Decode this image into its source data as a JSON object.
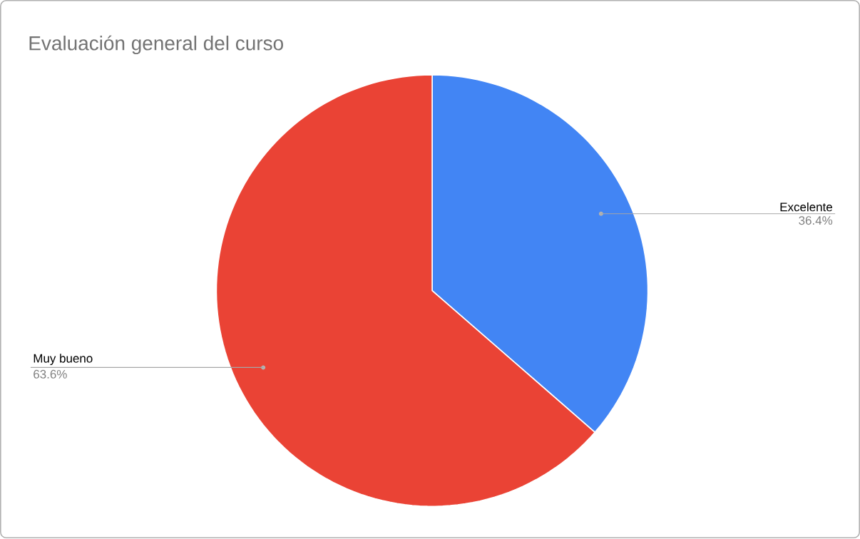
{
  "chart_data": {
    "type": "pie",
    "title": "Evaluación general del curso",
    "categories": [
      "Excelente",
      "Muy bueno"
    ],
    "values": [
      36.4,
      63.6
    ],
    "value_labels": [
      "36.4%",
      "63.6%"
    ],
    "colors": [
      "#4285f4",
      "#ea4335"
    ]
  }
}
